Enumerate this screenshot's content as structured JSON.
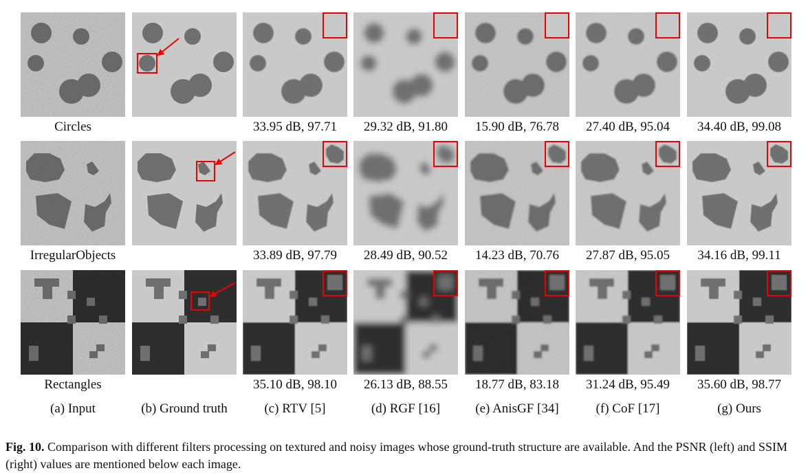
{
  "figure": {
    "columns": [
      "(a) Input",
      "(b) Ground truth",
      "(c) RTV [5]",
      "(d) RGF [16]",
      "(e) AnisGF [34]",
      "(f) CoF [17]",
      "(g) Ours"
    ],
    "rows": [
      {
        "name": "Circles",
        "metrics": [
          "33.95 dB, 97.71",
          "29.32 dB, 91.80",
          "15.90 dB, 76.78",
          "27.40 dB, 95.04",
          "34.40 dB, 99.08"
        ]
      },
      {
        "name": "IrregularObjects",
        "metrics": [
          "33.89 dB, 97.79",
          "28.49 dB, 90.52",
          "14.23 dB, 70.76",
          "27.87 dB, 95.05",
          "34.16 dB, 99.11"
        ]
      },
      {
        "name": "Rectangles",
        "metrics": [
          "35.10 dB, 98.10",
          "26.13 dB, 88.55",
          "18.77 dB, 83.18",
          "31.24 dB, 95.49",
          "35.60 dB, 98.77"
        ]
      }
    ],
    "caption": {
      "label": "Fig. 10.",
      "text": "Comparison with different filters processing on textured and noisy images whose ground-truth structure are available. And the PSNR (left) and SSIM (right) values are mentioned below each image."
    }
  }
}
